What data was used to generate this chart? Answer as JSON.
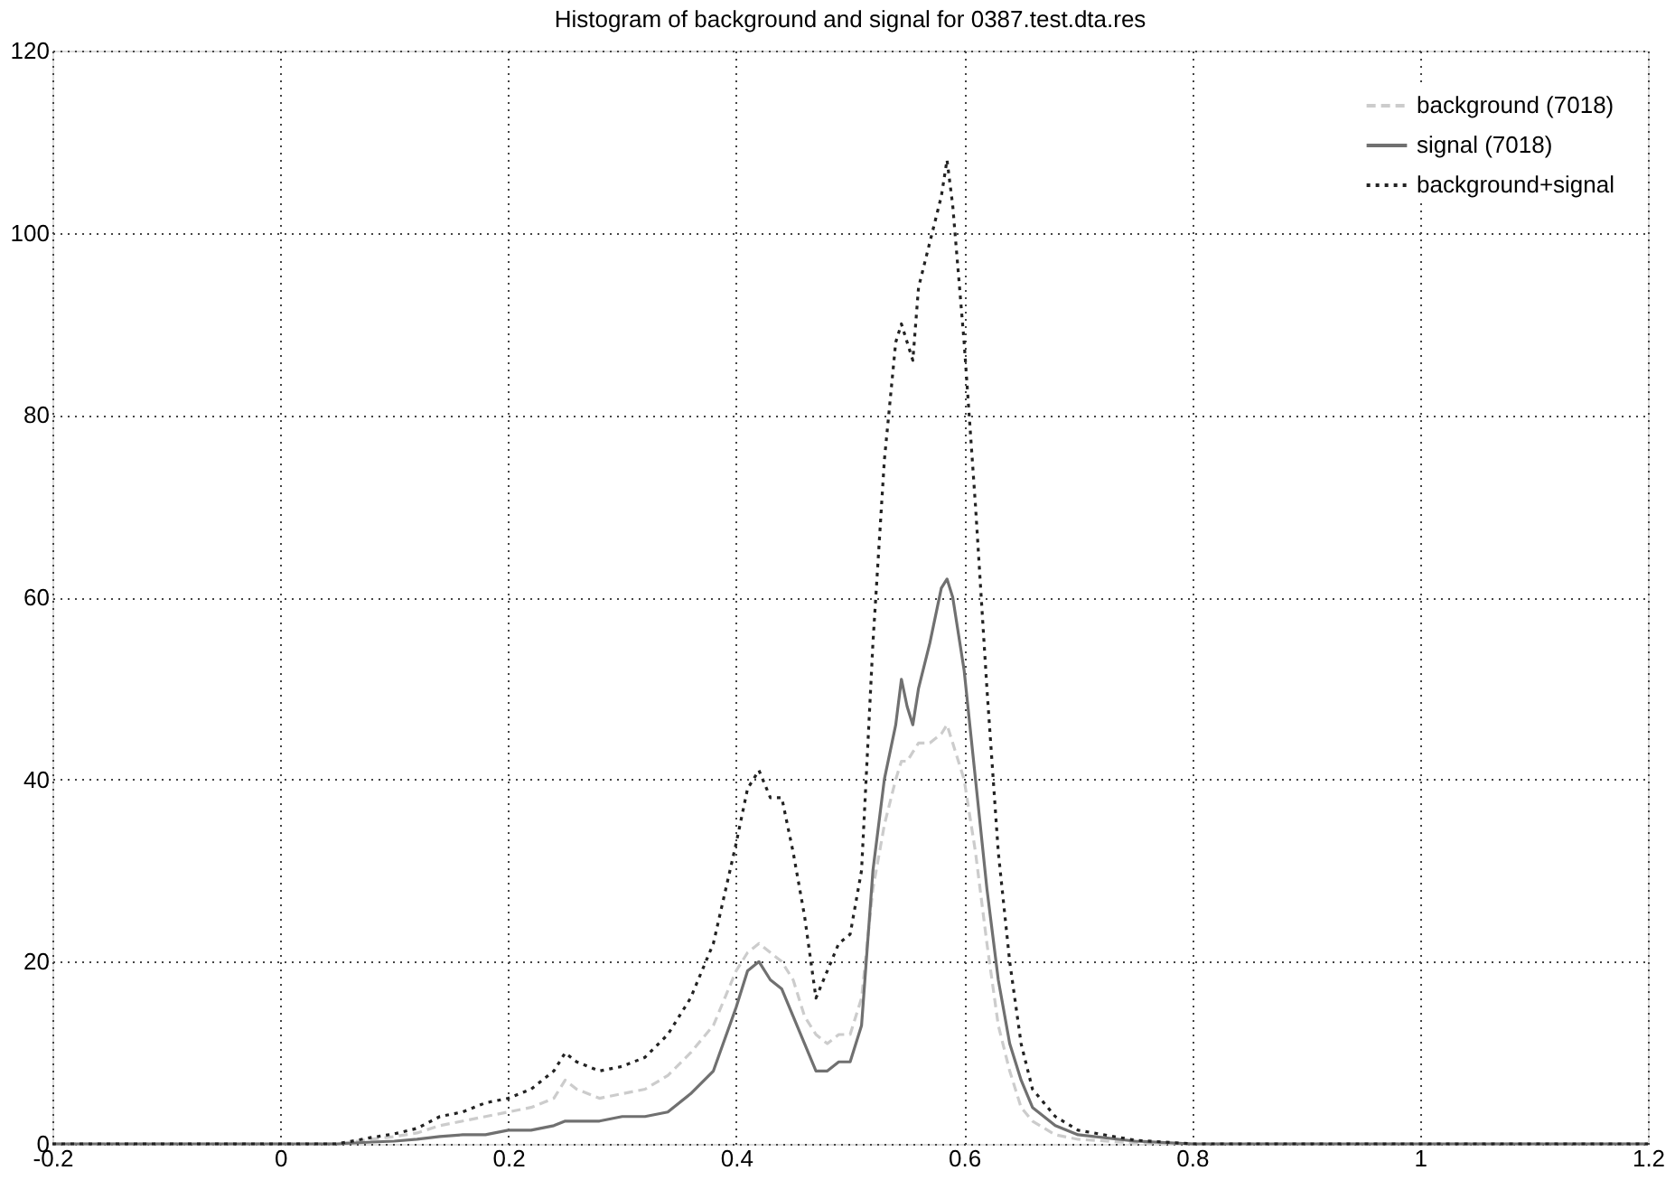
{
  "chart_data": {
    "type": "line",
    "title": "Histogram of background and signal for     0387.test.dta.res",
    "x": [
      -0.2,
      0.0,
      0.05,
      0.08,
      0.1,
      0.12,
      0.14,
      0.16,
      0.18,
      0.2,
      0.22,
      0.24,
      0.25,
      0.26,
      0.28,
      0.3,
      0.32,
      0.34,
      0.36,
      0.38,
      0.4,
      0.41,
      0.42,
      0.43,
      0.44,
      0.45,
      0.46,
      0.47,
      0.48,
      0.49,
      0.5,
      0.51,
      0.52,
      0.53,
      0.54,
      0.545,
      0.55,
      0.555,
      0.56,
      0.57,
      0.58,
      0.585,
      0.59,
      0.6,
      0.61,
      0.62,
      0.63,
      0.64,
      0.65,
      0.66,
      0.68,
      0.7,
      0.75,
      0.8,
      1.2
    ],
    "series": [
      {
        "name": "background (7018)",
        "color": "#cccccc",
        "line_style": "dashed",
        "values": [
          0,
          0,
          0,
          0.5,
          0.8,
          1.2,
          2,
          2.5,
          3,
          3.5,
          4,
          5,
          7,
          6,
          5,
          5.5,
          6,
          7.5,
          10,
          13,
          19,
          21,
          22,
          21,
          20,
          18,
          14,
          12,
          11,
          12,
          12,
          16,
          28,
          35,
          40,
          42,
          42,
          43,
          44,
          44,
          45,
          46,
          44,
          40,
          32,
          22,
          13,
          8,
          4,
          2.5,
          1,
          0.5,
          0.1,
          0,
          0
        ]
      },
      {
        "name": "signal (7018)",
        "color": "#707070",
        "line_style": "solid",
        "values": [
          0,
          0,
          0,
          0.2,
          0.3,
          0.5,
          0.8,
          1,
          1,
          1.5,
          1.5,
          2,
          2.5,
          2.5,
          2.5,
          3,
          3,
          3.5,
          5.5,
          8,
          15,
          19,
          20,
          18,
          17,
          14,
          11,
          8,
          8,
          9,
          9,
          13,
          30,
          40,
          46,
          51,
          48,
          46,
          50,
          55,
          61,
          62,
          60,
          52,
          40,
          28,
          18,
          11,
          7,
          4,
          2,
          1,
          0.3,
          0,
          0
        ]
      },
      {
        "name": "background+signal",
        "color": "#222222",
        "line_style": "dotted",
        "values": [
          0,
          0,
          0,
          0.7,
          1.1,
          1.7,
          3,
          3.5,
          4.5,
          5,
          6,
          8,
          10,
          9,
          8,
          8.5,
          9.5,
          12,
          16,
          22,
          33,
          39,
          41,
          38,
          38,
          32,
          25,
          16,
          19,
          22,
          23,
          30,
          55,
          75,
          88,
          90,
          88,
          86,
          94,
          99,
          104,
          108,
          103,
          88,
          70,
          50,
          32,
          20,
          11,
          6,
          3,
          1.5,
          0.4,
          0,
          0
        ]
      }
    ],
    "xlim": [
      -0.2,
      1.2
    ],
    "xticks": [
      -0.2,
      0,
      0.2,
      0.4,
      0.6,
      0.8,
      1,
      1.2
    ],
    "ylim": [
      0,
      120
    ],
    "yticks": [
      0,
      20,
      40,
      60,
      80,
      100,
      120
    ],
    "grid": true,
    "legend": "top right"
  }
}
